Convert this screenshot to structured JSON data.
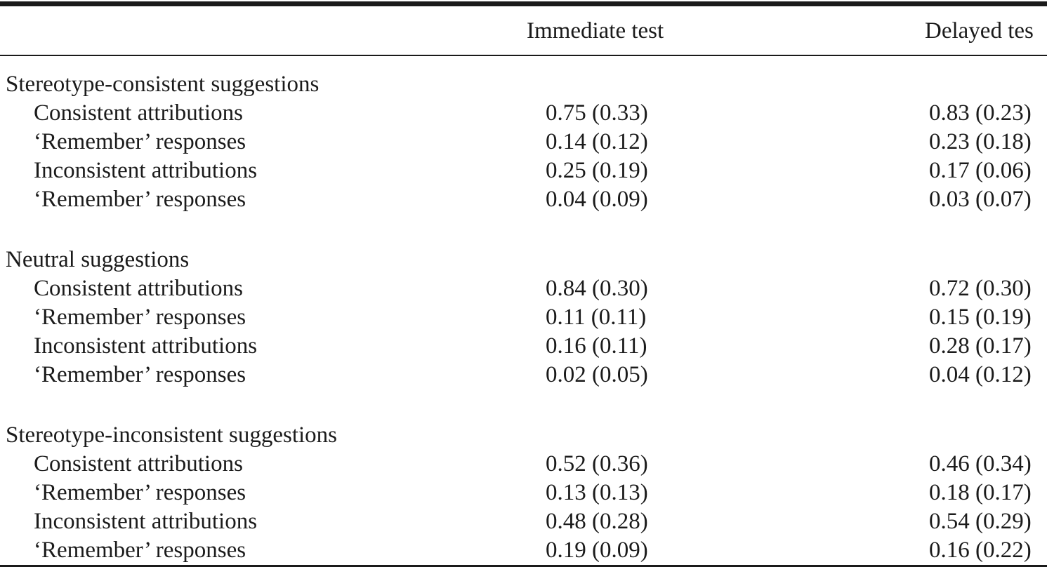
{
  "page": {
    "background": "#ffffff",
    "text_color": "#1b1b1b",
    "rule_color": "#1a1a1a"
  },
  "table": {
    "col_headers": {
      "immediate": "Immediate test",
      "delayed": "Delayed tes"
    },
    "sections": [
      {
        "title": "Stereotype-consistent suggestions",
        "rows": [
          {
            "label": "Consistent attributions",
            "immediate": "0.75 (0.33)",
            "delayed": "0.83 (0.23)"
          },
          {
            "label": "‘Remember’ responses",
            "immediate": "0.14 (0.12)",
            "delayed": "0.23 (0.18)"
          },
          {
            "label": "Inconsistent attributions",
            "immediate": "0.25 (0.19)",
            "delayed": "0.17 (0.06)"
          },
          {
            "label": "‘Remember’ responses",
            "immediate": "0.04 (0.09)",
            "delayed": "0.03 (0.07)"
          }
        ]
      },
      {
        "title": "Neutral suggestions",
        "rows": [
          {
            "label": "Consistent attributions",
            "immediate": "0.84 (0.30)",
            "delayed": "0.72 (0.30)"
          },
          {
            "label": "‘Remember’ responses",
            "immediate": "0.11 (0.11)",
            "delayed": "0.15 (0.19)"
          },
          {
            "label": "Inconsistent attributions",
            "immediate": "0.16 (0.11)",
            "delayed": "0.28 (0.17)"
          },
          {
            "label": "‘Remember’ responses",
            "immediate": "0.02 (0.05)",
            "delayed": "0.04 (0.12)"
          }
        ]
      },
      {
        "title": "Stereotype-inconsistent suggestions",
        "rows": [
          {
            "label": "Consistent attributions",
            "immediate": "0.52 (0.36)",
            "delayed": "0.46 (0.34)"
          },
          {
            "label": "‘Remember’ responses",
            "immediate": "0.13 (0.13)",
            "delayed": "0.18 (0.17)"
          },
          {
            "label": "Inconsistent attributions",
            "immediate": "0.48 (0.28)",
            "delayed": "0.54 (0.29)"
          },
          {
            "label": "‘Remember’ responses",
            "immediate": "0.19 (0.09)",
            "delayed": "0.16 (0.22)"
          }
        ]
      }
    ]
  }
}
